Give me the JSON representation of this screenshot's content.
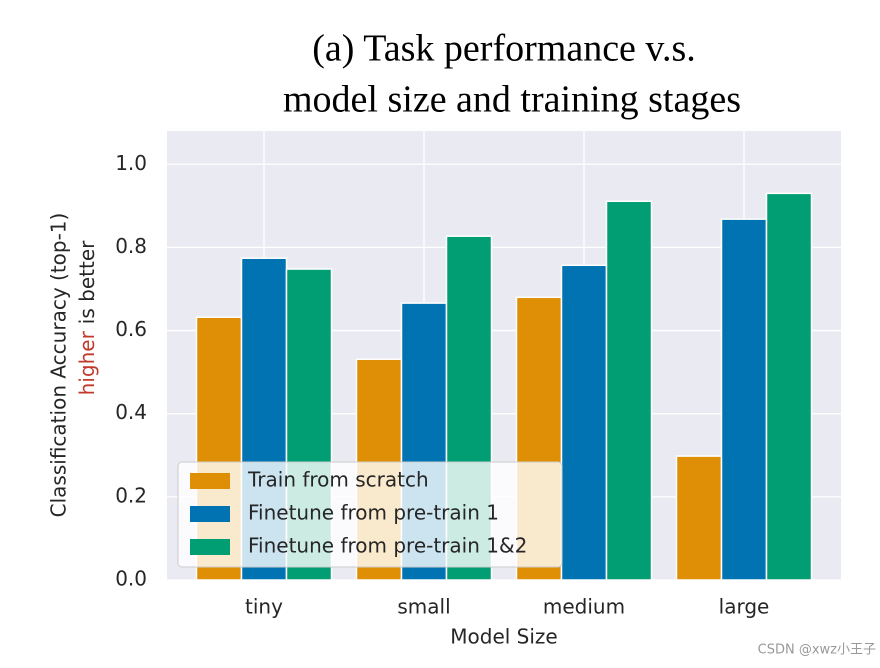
{
  "chart_data": {
    "type": "bar",
    "title": [
      "(a) Task performance v.s.",
      "model size and training stages"
    ],
    "xlabel": "Model Size",
    "ylabel": {
      "line1": "Classification Accuracy (top-1)",
      "highlight": "higher",
      "highlight_color": "#c0392b",
      "rest": "is better"
    },
    "categories": [
      "tiny",
      "small",
      "medium",
      "large"
    ],
    "series": [
      {
        "name": "Train from scratch",
        "color": "#de8f05",
        "values": [
          0.632,
          0.531,
          0.68,
          0.298
        ]
      },
      {
        "name": "Finetune from pre-train 1",
        "color": "#0173b2",
        "values": [
          0.774,
          0.666,
          0.757,
          0.868
        ]
      },
      {
        "name": "Finetune from pre-train 1&2",
        "color": "#029e73",
        "values": [
          0.748,
          0.827,
          0.911,
          0.93
        ]
      }
    ],
    "ylim": [
      0,
      1.08
    ],
    "yticks": [
      {
        "value": 0,
        "label": "0.0"
      },
      0.2,
      0.4,
      0.6,
      0.8,
      {
        "value": 1,
        "label": "1.0"
      }
    ],
    "grid": true,
    "legend": "lower left",
    "watermark": "CSDN @xwz小王子"
  }
}
